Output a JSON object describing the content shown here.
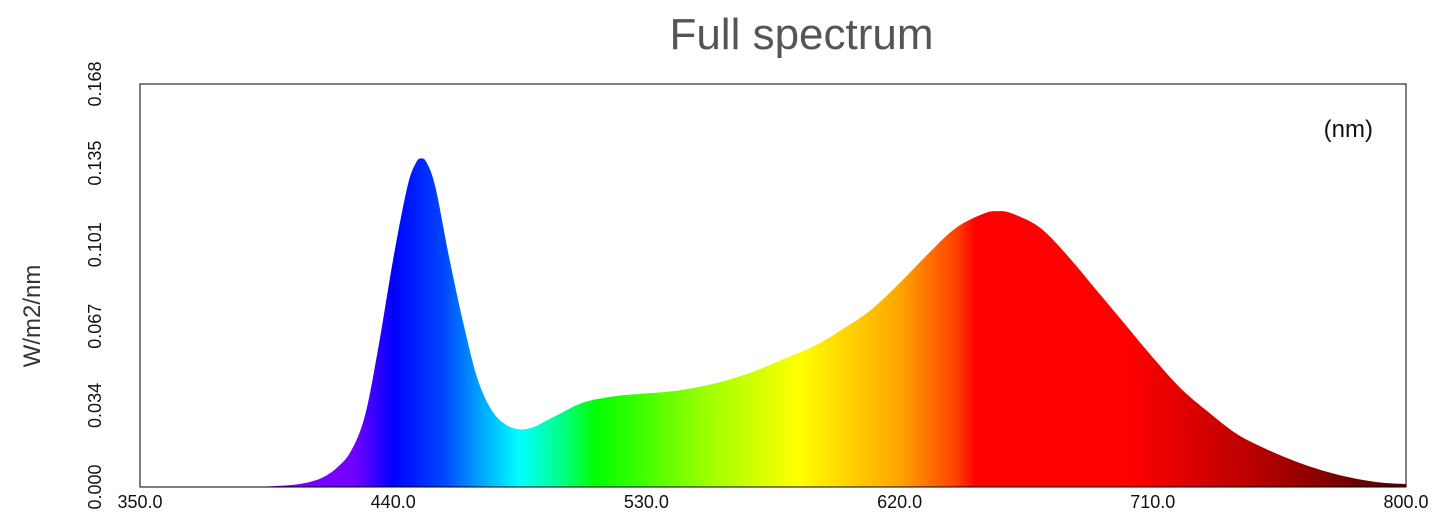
{
  "chart_data": {
    "type": "area",
    "title": "Full spectrum",
    "ylabel": "W/m2/nm",
    "annotation": "(nm)",
    "xlim": [
      350,
      800
    ],
    "ylim": [
      0,
      0.168
    ],
    "x_ticks": [
      "350.0",
      "440.0",
      "530.0",
      "620.0",
      "710.0",
      "800.0"
    ],
    "y_ticks": [
      "0.000",
      "0.034",
      "0.067",
      "0.101",
      "0.135",
      "0.168"
    ],
    "grid": false,
    "fill": "wavelength color gradient",
    "series": [
      {
        "x": [
          350,
          360,
          370,
          380,
          390,
          400,
          405,
          410,
          415,
          420,
          425,
          430,
          435,
          440,
          445,
          448,
          450,
          452,
          455,
          460,
          465,
          470,
          475,
          480,
          485,
          490,
          495,
          500,
          505,
          510,
          520,
          530,
          540,
          550,
          560,
          570,
          580,
          590,
          600,
          610,
          620,
          630,
          640,
          650,
          655,
          660,
          670,
          680,
          690,
          700,
          710,
          720,
          730,
          740,
          750,
          760,
          770,
          780,
          790,
          800
        ],
        "y": [
          0.0,
          0.0,
          0.0,
          0.0,
          0.0,
          0.0005,
          0.001,
          0.002,
          0.004,
          0.008,
          0.015,
          0.03,
          0.06,
          0.095,
          0.125,
          0.135,
          0.137,
          0.135,
          0.125,
          0.095,
          0.068,
          0.045,
          0.032,
          0.026,
          0.024,
          0.025,
          0.028,
          0.031,
          0.034,
          0.036,
          0.038,
          0.039,
          0.04,
          0.042,
          0.045,
          0.049,
          0.054,
          0.059,
          0.066,
          0.074,
          0.085,
          0.097,
          0.108,
          0.114,
          0.115,
          0.114,
          0.108,
          0.096,
          0.082,
          0.068,
          0.054,
          0.041,
          0.031,
          0.022,
          0.016,
          0.011,
          0.007,
          0.004,
          0.002,
          0.0012
        ]
      }
    ]
  }
}
